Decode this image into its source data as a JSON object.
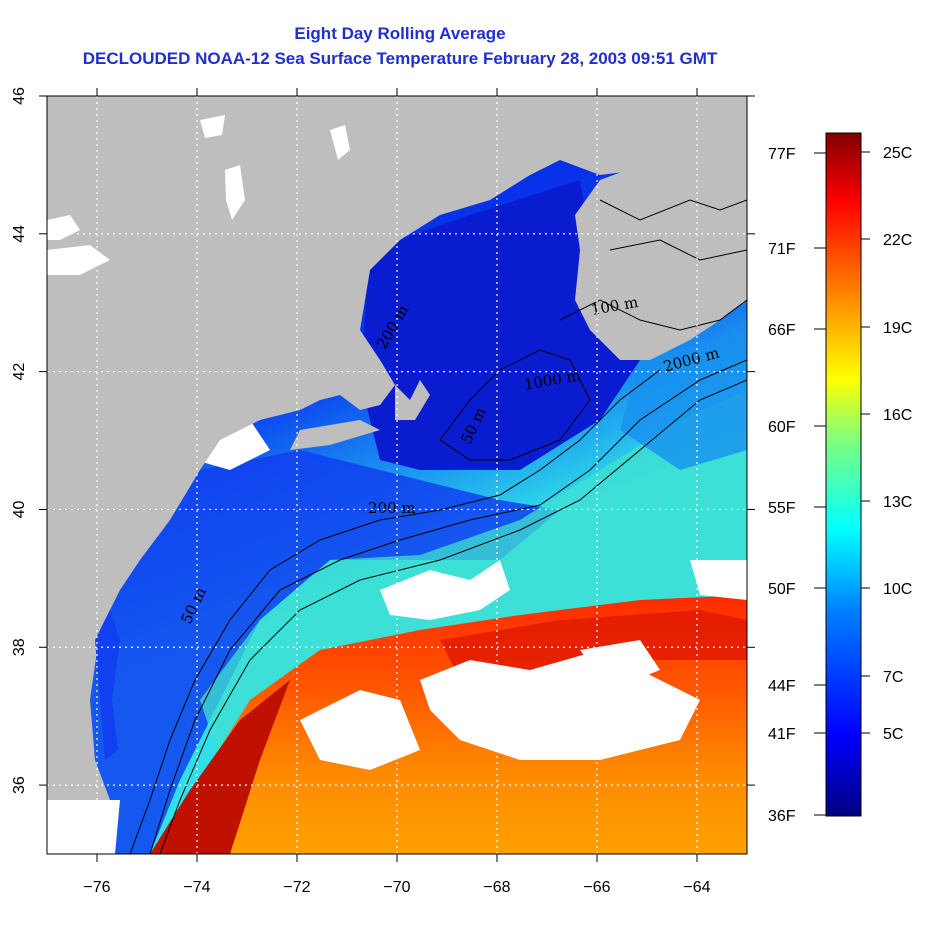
{
  "title_line1": "Eight Day Rolling Average",
  "title_line2": "DECLOUDED NOAA-12 Sea Surface Temperature February 28, 2003 09:51 GMT",
  "map": {
    "lon_ticks": [
      -76,
      -74,
      -72,
      -70,
      -68,
      -66,
      -64
    ],
    "lon_labels": [
      "−76",
      "−74",
      "−72",
      "−70",
      "−68",
      "−66",
      "−64"
    ],
    "lat_ticks": [
      36,
      38,
      40,
      42,
      44,
      46
    ],
    "lat_labels": [
      "36",
      "38",
      "40",
      "42",
      "44",
      "46"
    ],
    "lon_range": [
      -77,
      -63
    ],
    "lat_range": [
      35,
      46
    ],
    "grid": "dotted white",
    "contour_labels": [
      "50 m",
      "200 m",
      "100 m",
      "2000 m",
      "50 m",
      "200 m",
      "1000 m"
    ]
  },
  "colorbar": {
    "celsius": [
      "25C",
      "22C",
      "19C",
      "16C",
      "13C",
      "10C",
      "7C",
      "5C"
    ],
    "fahrenheit": [
      "77F",
      "71F",
      "66F",
      "60F",
      "55F",
      "50F",
      "44F",
      "41F",
      "36F"
    ],
    "colors": [
      "#00007f",
      "#0000ff",
      "#007fff",
      "#00ffff",
      "#7fff7f",
      "#ffff00",
      "#ff7f00",
      "#ff0000",
      "#7f0000"
    ]
  },
  "colors": {
    "land": "#bebebe",
    "cloud": "#ffffff",
    "title": "#1f2fd0"
  }
}
